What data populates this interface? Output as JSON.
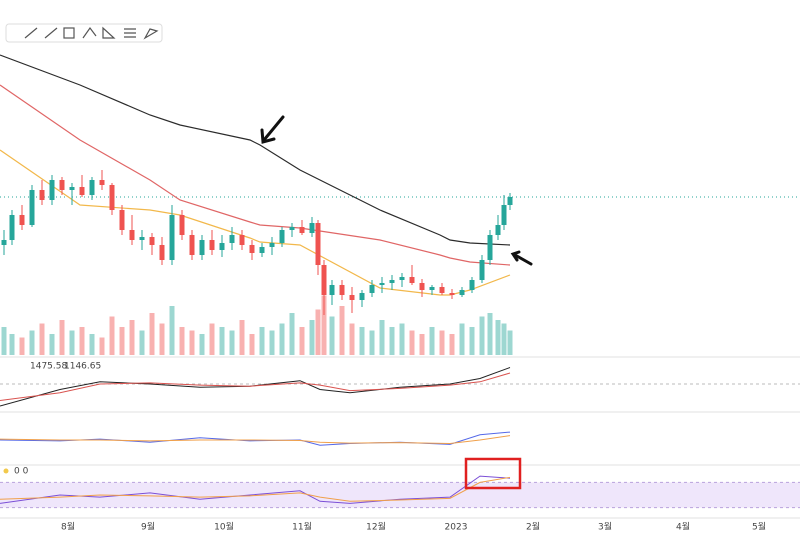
{
  "chart_data": {
    "type": "candlestick",
    "xlim": [
      0,
      800
    ],
    "ylim": [
      0,
      315
    ],
    "xticks": [
      {
        "value": 68,
        "label": "8월"
      },
      {
        "value": 148,
        "label": "9월"
      },
      {
        "value": 224,
        "label": "10월"
      },
      {
        "value": 302,
        "label": "11월"
      },
      {
        "value": 376,
        "label": "12월"
      },
      {
        "value": 456,
        "label": "2023"
      },
      {
        "value": 533,
        "label": "2월"
      },
      {
        "value": 605,
        "label": "3월"
      },
      {
        "value": 683,
        "label": "4월"
      },
      {
        "value": 759,
        "label": "5월"
      }
    ],
    "up_color": "#26a69a",
    "down_color": "#ef5350",
    "candles": {
      "x": [
        4,
        12,
        22,
        32,
        42,
        52,
        62,
        72,
        82,
        92,
        102,
        112,
        122,
        132,
        142,
        152,
        162,
        172,
        182,
        192,
        202,
        212,
        222,
        232,
        242,
        252,
        262,
        272,
        282,
        292,
        302,
        312,
        318,
        324,
        332,
        342,
        352,
        362,
        372,
        382,
        392,
        402,
        412,
        422,
        432,
        442,
        452,
        462,
        472,
        482,
        490,
        498,
        504,
        510
      ],
      "open": [
        110,
        115,
        140,
        130,
        165,
        155,
        175,
        165,
        168,
        160,
        175,
        170,
        145,
        125,
        115,
        118,
        110,
        95,
        140,
        120,
        100,
        115,
        105,
        112,
        120,
        110,
        102,
        108,
        112,
        125,
        128,
        122,
        132,
        90,
        60,
        70,
        60,
        55,
        62,
        70,
        72,
        75,
        78,
        72,
        65,
        68,
        62,
        60,
        65,
        75,
        95,
        120,
        130,
        150
      ],
      "high": [
        125,
        145,
        150,
        170,
        175,
        180,
        178,
        172,
        180,
        178,
        185,
        172,
        150,
        140,
        125,
        122,
        118,
        150,
        145,
        125,
        120,
        125,
        120,
        128,
        125,
        115,
        112,
        118,
        128,
        132,
        135,
        138,
        135,
        95,
        75,
        75,
        68,
        65,
        75,
        78,
        80,
        82,
        90,
        76,
        70,
        72,
        66,
        68,
        78,
        100,
        125,
        140,
        160,
        162
      ],
      "low": [
        100,
        110,
        125,
        128,
        150,
        150,
        160,
        150,
        158,
        155,
        165,
        140,
        120,
        110,
        105,
        100,
        90,
        90,
        115,
        95,
        95,
        100,
        98,
        105,
        105,
        95,
        98,
        100,
        108,
        118,
        120,
        118,
        80,
        40,
        50,
        55,
        42,
        48,
        58,
        62,
        65,
        68,
        70,
        58,
        60,
        60,
        56,
        58,
        62,
        72,
        90,
        115,
        125,
        145
      ],
      "close": [
        115,
        140,
        130,
        165,
        155,
        175,
        165,
        168,
        160,
        175,
        170,
        145,
        125,
        115,
        118,
        110,
        95,
        140,
        120,
        100,
        115,
        105,
        112,
        120,
        110,
        102,
        108,
        112,
        125,
        128,
        122,
        132,
        90,
        60,
        70,
        60,
        55,
        62,
        70,
        72,
        75,
        78,
        72,
        65,
        68,
        62,
        60,
        65,
        75,
        95,
        120,
        130,
        150,
        158
      ],
      "volume": [
        40,
        30,
        25,
        35,
        45,
        30,
        50,
        35,
        40,
        30,
        25,
        55,
        40,
        50,
        35,
        60,
        45,
        70,
        40,
        35,
        30,
        45,
        40,
        35,
        50,
        30,
        40,
        35,
        45,
        60,
        40,
        50,
        65,
        85,
        55,
        70,
        45,
        40,
        35,
        50,
        40,
        45,
        35,
        30,
        40,
        35,
        30,
        45,
        40,
        55,
        60,
        50,
        45,
        35
      ]
    },
    "volume_ylim": [
      0,
      100
    ],
    "moving_averages": {
      "x": [
        0,
        80,
        150,
        180,
        250,
        260,
        300,
        380,
        440,
        450,
        470,
        510
      ],
      "series": [
        {
          "color": "#2b2b2b",
          "values": [
            300,
            270,
            240,
            230,
            215,
            210,
            185,
            145,
            120,
            115,
            112,
            110
          ]
        },
        {
          "color": "#e06666",
          "values": [
            270,
            215,
            175,
            155,
            133,
            130,
            127,
            115,
            100,
            97,
            93,
            90
          ]
        },
        {
          "color": "#f2b84b",
          "values": [
            205,
            150,
            145,
            140,
            117,
            113,
            110,
            67,
            60,
            60,
            65,
            80
          ]
        }
      ]
    },
    "macd": {
      "labels": [
        "1475.58",
        "1146.65"
      ],
      "x": [
        0,
        60,
        100,
        150,
        200,
        250,
        300,
        320,
        350,
        400,
        450,
        480,
        510
      ],
      "ylim": [
        -20,
        20
      ],
      "series": [
        {
          "color": "#222222",
          "values": [
            -20,
            -5,
            2,
            0,
            -3,
            -2,
            3,
            -5,
            -8,
            -3,
            0,
            5,
            15
          ]
        },
        {
          "color": "#d9534f",
          "values": [
            -15,
            -8,
            0,
            1,
            -1,
            -2,
            1,
            -1,
            -6,
            -4,
            -1,
            2,
            10
          ]
        }
      ]
    },
    "rsi": {
      "x": [
        0,
        60,
        100,
        150,
        200,
        250,
        300,
        320,
        350,
        400,
        450,
        480,
        510
      ],
      "ylim": [
        0,
        100
      ],
      "series": [
        {
          "color": "#5468e8",
          "values": [
            50,
            48,
            52,
            45,
            55,
            48,
            50,
            38,
            42,
            45,
            40,
            62,
            68
          ]
        },
        {
          "color": "#f0a04b",
          "values": [
            52,
            50,
            50,
            48,
            50,
            50,
            49,
            45,
            43,
            44,
            42,
            50,
            60
          ]
        }
      ]
    },
    "stochastic": {
      "label": "0 0",
      "x": [
        0,
        60,
        100,
        150,
        200,
        250,
        300,
        320,
        350,
        400,
        450,
        480,
        510
      ],
      "ylim": [
        0,
        100
      ],
      "band": [
        20,
        80
      ],
      "series": [
        {
          "color": "#7b4fd6",
          "values": [
            30,
            50,
            45,
            55,
            40,
            50,
            60,
            35,
            30,
            40,
            45,
            95,
            90
          ]
        },
        {
          "color": "#f0a04b",
          "values": [
            40,
            45,
            50,
            48,
            45,
            48,
            55,
            45,
            35,
            38,
            42,
            80,
            92
          ]
        }
      ]
    }
  }
}
